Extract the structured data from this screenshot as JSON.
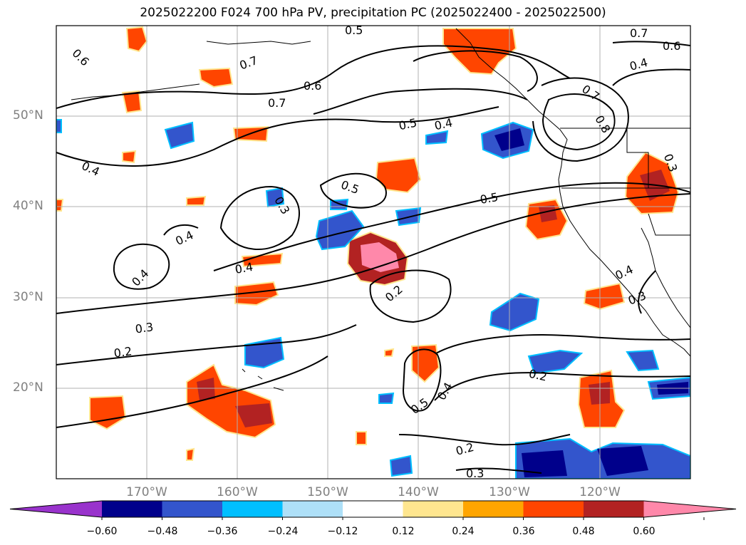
{
  "title": "2025022200 F024 700 hPa PV, precipitation PC (2025022400 - 2025022500)",
  "lat_labels": [
    {
      "text": "50°N",
      "lat": 50
    },
    {
      "text": "40°N",
      "lat": 40
    },
    {
      "text": "30°N",
      "lat": 30
    },
    {
      "text": "20°N",
      "lat": 20
    }
  ],
  "lon_labels": [
    {
      "text": "170°W",
      "lon": -170
    },
    {
      "text": "160°W",
      "lon": -160
    },
    {
      "text": "150°W",
      "lon": -150
    },
    {
      "text": "140°W",
      "lon": -140
    },
    {
      "text": "130°W",
      "lon": -130
    },
    {
      "text": "120°W",
      "lon": -120
    }
  ],
  "map_extent": {
    "lon_min": -180,
    "lon_max": -110,
    "lat_min": 10,
    "lat_max": 60
  },
  "contour_labels": [
    {
      "text": "0.6"
    },
    {
      "text": "0.5"
    },
    {
      "text": "0.7"
    },
    {
      "text": "0.7"
    },
    {
      "text": "0.6"
    },
    {
      "text": "0.4"
    },
    {
      "text": "0.7"
    },
    {
      "text": "0.6"
    },
    {
      "text": "0.5"
    },
    {
      "text": "0.4"
    },
    {
      "text": "0.7"
    },
    {
      "text": "0.8"
    },
    {
      "text": "0.4"
    },
    {
      "text": "0.5"
    },
    {
      "text": "0.3"
    },
    {
      "text": "0.4"
    },
    {
      "text": "0.5"
    },
    {
      "text": "0.4"
    },
    {
      "text": "0.4"
    },
    {
      "text": "0.2"
    },
    {
      "text": "0.3"
    },
    {
      "text": "0.2"
    },
    {
      "text": "0.4"
    },
    {
      "text": "0.3"
    },
    {
      "text": "0.5"
    },
    {
      "text": "0.4"
    },
    {
      "text": "0.2"
    },
    {
      "text": "0.2"
    },
    {
      "text": "0.3"
    },
    {
      "text": "0.3"
    }
  ],
  "colorbar": {
    "ticks": [
      "−0.60",
      "−0.48",
      "−0.36",
      "−0.24",
      "−0.12",
      "0.12",
      "0.24",
      "0.36",
      "0.48",
      "0.60"
    ],
    "colors": [
      "#9933cc",
      "#00008b",
      "#3355cc",
      "#00bfff",
      "#aee0f8",
      "#ffffff",
      "#ffe68f",
      "#ffa500",
      "#ff4500",
      "#b22222",
      "#ff88aa"
    ]
  }
}
